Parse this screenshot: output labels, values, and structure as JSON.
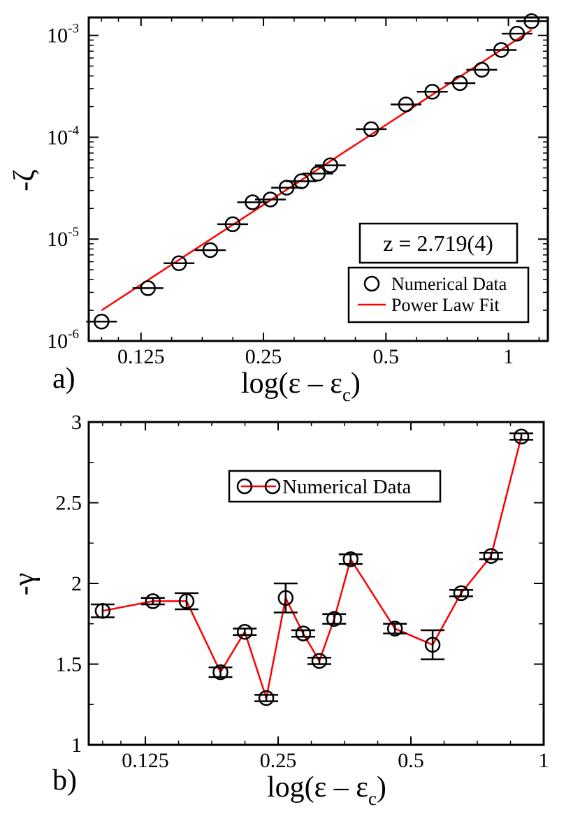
{
  "chart_data": [
    {
      "panel": "a)",
      "type": "scatter",
      "xscale": "log2",
      "yscale": "log10",
      "xlabel": "log(ε – ε",
      "xlabel_sub": "c",
      "xlabel_close": ")",
      "ylabel": "-ζ",
      "xlim": [
        0.093,
        1.25
      ],
      "ylim": [
        1e-06,
        0.0015
      ],
      "xticks": [
        {
          "value": 0.125,
          "label": "0.125"
        },
        {
          "value": 0.25,
          "label": "0.25"
        },
        {
          "value": 0.5,
          "label": "0.5"
        },
        {
          "value": 1,
          "label": "1"
        }
      ],
      "yticks": [
        {
          "value": 1e-06,
          "base": "10",
          "exp": "-6"
        },
        {
          "value": 1e-05,
          "base": "10",
          "exp": "-5"
        },
        {
          "value": 0.0001,
          "base": "10",
          "exp": "-4"
        },
        {
          "value": 0.001,
          "base": "10",
          "exp": "-3"
        }
      ],
      "series": [
        {
          "name": "Numerical Data",
          "style": "open-circle",
          "x": [
            0.1,
            0.13,
            0.155,
            0.185,
            0.21,
            0.235,
            0.26,
            0.285,
            0.31,
            0.34,
            0.365,
            0.46,
            0.56,
            0.65,
            0.76,
            0.86,
            0.96,
            1.05,
            1.14
          ],
          "y": [
            1.55e-06,
            3.3e-06,
            5.8e-06,
            7.8e-06,
            1.4e-05,
            2.3e-05,
            2.45e-05,
            3.2e-05,
            3.7e-05,
            4.4e-05,
            5.3e-05,
            0.00012,
            0.00021,
            0.00028,
            0.00034,
            0.00046,
            0.00072,
            0.00104,
            0.00138
          ]
        },
        {
          "name": "Power Law Fit",
          "style": "line",
          "color": "#ff0000",
          "x": [
            0.1,
            1.14
          ],
          "y": [
            2e-06,
            0.00113
          ]
        }
      ],
      "annotation": "z = 2.719(4)",
      "legend": [
        "Numerical Data",
        "Power Law Fit"
      ],
      "legend_position": "bottom-right"
    },
    {
      "panel": "b)",
      "type": "line",
      "xscale": "log2",
      "yscale": "linear",
      "xlabel": "log(ε – ε",
      "xlabel_sub": "c",
      "xlabel_close": ")",
      "ylabel": "-γ",
      "xlim": [
        0.093,
        1.0
      ],
      "ylim": [
        1,
        3
      ],
      "xticks": [
        {
          "value": 0.125,
          "label": "0.125"
        },
        {
          "value": 0.25,
          "label": "0.25"
        },
        {
          "value": 0.5,
          "label": "0.5"
        },
        {
          "value": 1,
          "label": "1"
        }
      ],
      "yticks": [
        {
          "value": 1,
          "label": "1"
        },
        {
          "value": 1.5,
          "label": "1.5"
        },
        {
          "value": 2,
          "label": "2"
        },
        {
          "value": 2.5,
          "label": "2.5"
        },
        {
          "value": 3,
          "label": "3"
        }
      ],
      "series": [
        {
          "name": "Numerical Data",
          "style": "open-circle-line",
          "color": "#ff0000",
          "x": [
            0.1,
            0.13,
            0.155,
            0.185,
            0.21,
            0.235,
            0.26,
            0.285,
            0.31,
            0.335,
            0.365,
            0.46,
            0.56,
            0.65,
            0.76,
            0.89
          ],
          "y": [
            1.83,
            1.89,
            1.89,
            1.45,
            1.7,
            1.29,
            1.91,
            1.69,
            1.52,
            1.78,
            2.15,
            1.72,
            1.62,
            1.94,
            2.17,
            2.91
          ],
          "err": [
            0.04,
            0.02,
            0.05,
            0.03,
            0.02,
            0.02,
            0.09,
            0.02,
            0.02,
            0.03,
            0.03,
            0.03,
            0.09,
            0.02,
            0.02,
            0.02
          ]
        }
      ],
      "legend": [
        "Numerical Data"
      ],
      "legend_position": "top-center"
    }
  ]
}
